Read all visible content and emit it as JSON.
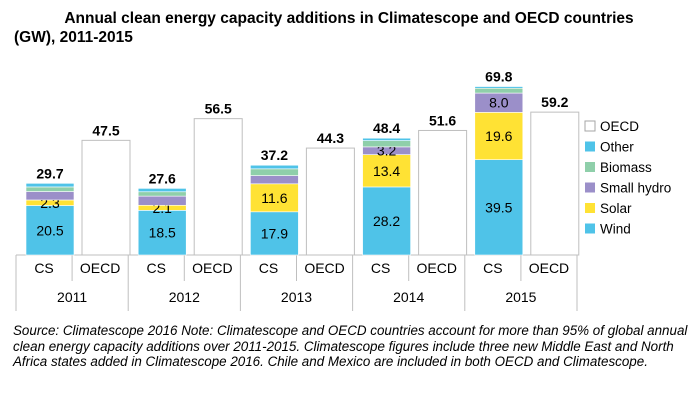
{
  "chart_data": {
    "type": "bar",
    "title_line1": "Annual clean energy capacity additions in Climatescope and OECD countries",
    "title_line2": "(GW), 2011-2015",
    "groups": [
      {
        "year": "2011",
        "bars": [
          {
            "label": "CS",
            "total": "29.7",
            "segments": {
              "Wind": 20.5,
              "Solar": 2.3,
              "Small hydro": 3.5,
              "Biomass": 1.9,
              "Other": 1.5
            },
            "segment_labels": {
              "Wind": "20.5",
              "Solar": "2.3"
            }
          },
          {
            "label": "OECD",
            "total": "47.5",
            "oecd": 47.5
          }
        ]
      },
      {
        "year": "2012",
        "bars": [
          {
            "label": "CS",
            "total": "27.6",
            "segments": {
              "Wind": 18.5,
              "Solar": 2.1,
              "Small hydro": 3.8,
              "Biomass": 1.8,
              "Other": 1.4
            },
            "segment_labels": {
              "Wind": "18.5",
              "Solar": "2.1"
            }
          },
          {
            "label": "OECD",
            "total": "56.5",
            "oecd": 56.5
          }
        ]
      },
      {
        "year": "2013",
        "bars": [
          {
            "label": "CS",
            "total": "37.2",
            "segments": {
              "Wind": 17.9,
              "Solar": 11.6,
              "Small hydro": 3.4,
              "Biomass": 2.8,
              "Other": 1.5
            },
            "segment_labels": {
              "Wind": "17.9",
              "Solar": "11.6"
            }
          },
          {
            "label": "OECD",
            "total": "44.3",
            "oecd": 44.3
          }
        ]
      },
      {
        "year": "2014",
        "bars": [
          {
            "label": "CS",
            "total": "48.4",
            "segments": {
              "Wind": 28.2,
              "Solar": 13.4,
              "Small hydro": 3.2,
              "Biomass": 2.6,
              "Other": 1.0
            },
            "segment_labels": {
              "Wind": "28.2",
              "Solar": "13.4",
              "Small hydro": "3.2"
            }
          },
          {
            "label": "OECD",
            "total": "51.6",
            "oecd": 51.6
          }
        ]
      },
      {
        "year": "2015",
        "bars": [
          {
            "label": "CS",
            "total": "69.8",
            "segments": {
              "Wind": 39.5,
              "Solar": 19.6,
              "Small hydro": 8.0,
              "Biomass": 2.0,
              "Other": 0.7
            },
            "segment_labels": {
              "Wind": "39.5",
              "Solar": "19.6",
              "Small hydro": "8.0"
            }
          },
          {
            "label": "OECD",
            "total": "59.2",
            "oecd": 59.2
          }
        ]
      }
    ],
    "stack_order": [
      "Wind",
      "Solar",
      "Small hydro",
      "Biomass",
      "Other"
    ],
    "legend": [
      "OECD",
      "Other",
      "Biomass",
      "Small hydro",
      "Solar",
      "Wind"
    ],
    "colors": {
      "Wind": "#4fc3e8",
      "Solar": "#ffe234",
      "Small hydro": "#9b8fc9",
      "Biomass": "#8fcfaa",
      "Other": "#4fc3e8",
      "OECD": "#ffffff"
    },
    "ylim": [
      0,
      75
    ],
    "legend_position": "right"
  },
  "source_note": "Source: Climatescope 2016 Note: Climatescope and OECD countries account for more than 95% of global annual clean energy capacity additions over 2011-2015. Climatescope figures include three new Middle East and North Africa states added in Climatescope 2016. Chile and Mexico are included in both OECD and Climatescope."
}
